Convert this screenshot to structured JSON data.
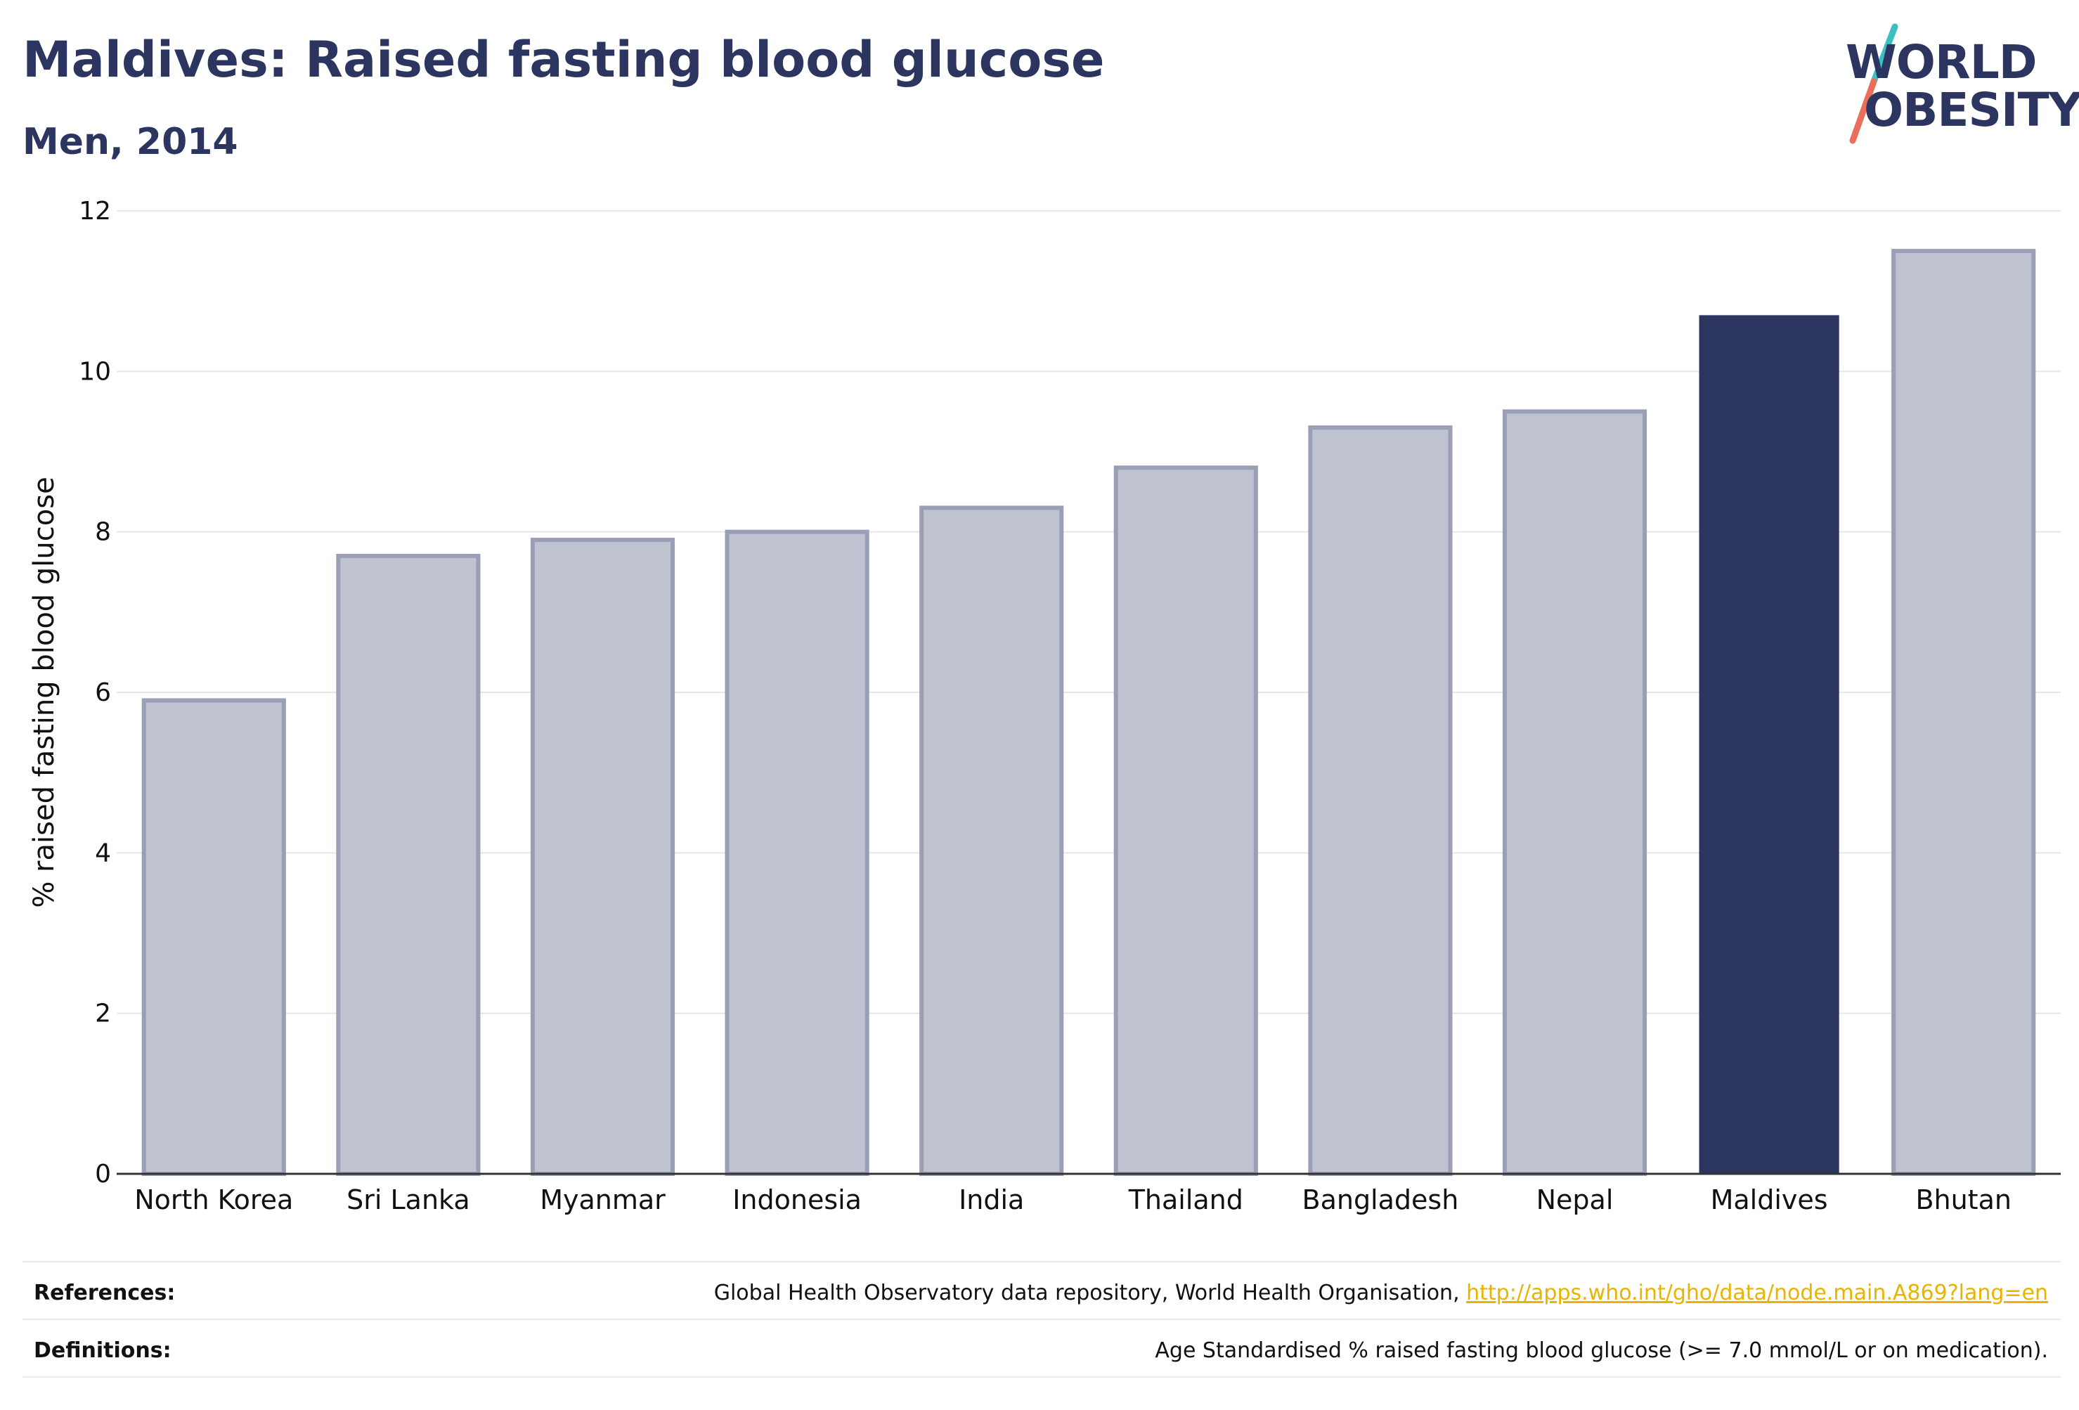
{
  "header": {
    "title": "Maldives: Raised fasting blood glucose",
    "subtitle": "Men, 2014"
  },
  "logo": {
    "line1": "WORLD",
    "line2": "OBESITY",
    "colors": {
      "text": "#2b3560",
      "slash_top": "#3bbfbf",
      "slash_bottom": "#e8705a"
    }
  },
  "chart_data": {
    "type": "bar",
    "categories": [
      "North Korea",
      "Sri Lanka",
      "Myanmar",
      "Indonesia",
      "India",
      "Thailand",
      "Bangladesh",
      "Nepal",
      "Maldives",
      "Bhutan"
    ],
    "values": [
      5.9,
      7.7,
      7.9,
      8.0,
      8.3,
      8.8,
      9.3,
      9.5,
      10.7,
      11.5
    ],
    "highlight": "Maldives",
    "ylabel": "% raised fasting blood glucose",
    "xlabel": "",
    "ylim": [
      0,
      12
    ],
    "yticks": [
      0,
      2,
      4,
      6,
      8,
      10,
      12
    ],
    "grid": true,
    "colors": {
      "highlight": "#2b3560",
      "bar": "#bfc2cf",
      "bar_border": "#9a9fb6"
    }
  },
  "footer": {
    "references_label": "References:",
    "references_text": "Global Health Observatory data repository, World Health Organisation, ",
    "references_link": "http://apps.who.int/gho/data/node.main.A869?lang=en",
    "definitions_label": "Definitions:",
    "definitions_text": "Age Standardised % raised fasting blood glucose (>= 7.0 mmol/L or on medication)."
  }
}
